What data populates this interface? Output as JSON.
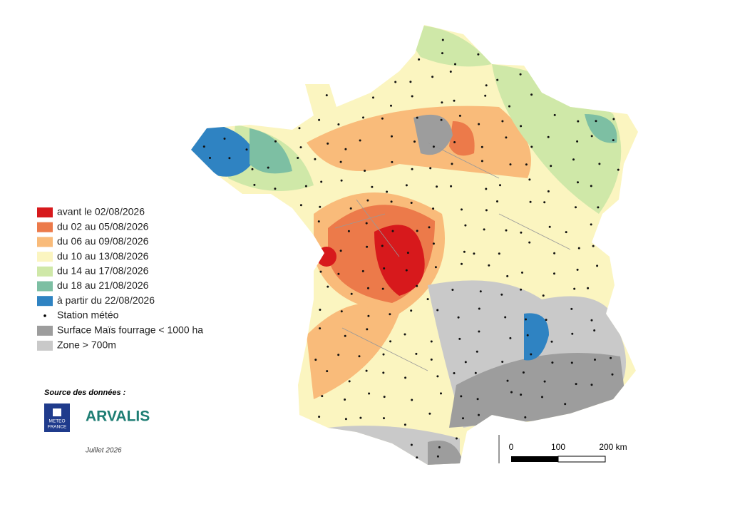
{
  "legend": {
    "items": [
      {
        "label": "avant le 02/08/2026",
        "color": "#d7191c"
      },
      {
        "label": "du 02 au 05/08/2026",
        "color": "#ec7a4a"
      },
      {
        "label": "du 06 au 09/08/2026",
        "color": "#f9bb7a"
      },
      {
        "label": "du 10 au 13/08/2026",
        "color": "#fbf5c0"
      },
      {
        "label": "du 14 au 17/08/2026",
        "color": "#cfe8a8"
      },
      {
        "label": "du 18 au 21/08/2026",
        "color": "#7dbfa3"
      },
      {
        "label": "à partir du 22/08/2026",
        "color": "#2f83c2"
      }
    ],
    "station": "Station météo",
    "zones": [
      {
        "label": "Surface Maïs fourrage < 1000 ha",
        "color": "#9d9d9d"
      },
      {
        "label": "Zone > 700m",
        "color": "#c9c9c9"
      }
    ]
  },
  "source": {
    "title": "Source des données :",
    "meteo_france": [
      "METEO",
      "FRANCE"
    ],
    "arvalis": "ARVALIS",
    "date": "Juillet 2026"
  },
  "scale": {
    "labels": [
      "0",
      "100",
      "200 km"
    ]
  }
}
